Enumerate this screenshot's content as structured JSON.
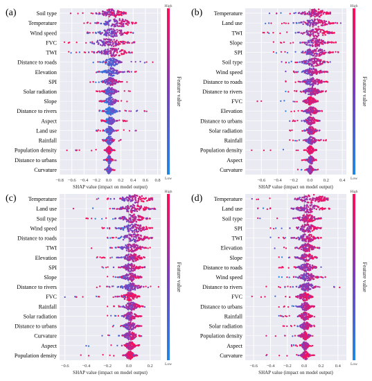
{
  "colors": {
    "low": "#1e88e5",
    "mid": "#7b3fbf",
    "high": "#ff0d57",
    "background": "#eaeaf2",
    "grid": "#ffffff"
  },
  "chart_data": [
    {
      "type": "beeswarm",
      "panel_label": "(a)",
      "xlabel": "SHAP value (impact on model output)",
      "colorbar_label": "Feature value",
      "colorbar_high": "High",
      "colorbar_low": "Low",
      "xlim": [
        -0.8,
        0.85
      ],
      "xticks": [
        -0.8,
        -0.6,
        -0.4,
        -0.2,
        0.0,
        0.2,
        0.4,
        0.6,
        0.8
      ],
      "xtick_labels": [
        "−0.8",
        "−0.6",
        "−0.4",
        "−0.2",
        "0.0",
        "0.2",
        "0.4",
        "0.6",
        "0.8"
      ],
      "features": [
        {
          "name": "Soil type",
          "min": -0.62,
          "max": 0.28,
          "core": [
            -0.1,
            0.22
          ]
        },
        {
          "name": "Temperature",
          "min": -0.4,
          "max": 0.45,
          "core": [
            -0.05,
            0.35
          ]
        },
        {
          "name": "Wind speed",
          "min": -0.35,
          "max": 0.4,
          "core": [
            -0.1,
            0.25
          ]
        },
        {
          "name": "FVC",
          "min": -0.72,
          "max": 0.42,
          "core": [
            -0.2,
            0.2
          ]
        },
        {
          "name": "TWI",
          "min": -0.65,
          "max": 0.38,
          "core": [
            -0.1,
            0.25
          ]
        },
        {
          "name": "Distance to roads",
          "min": -0.25,
          "max": 0.72,
          "core": [
            -0.05,
            0.15
          ]
        },
        {
          "name": "Elevation",
          "min": -0.2,
          "max": 0.45,
          "core": [
            -0.05,
            0.15
          ]
        },
        {
          "name": "SPI",
          "min": -0.3,
          "max": 0.3,
          "core": [
            -0.05,
            0.12
          ]
        },
        {
          "name": "Solar radiation",
          "min": -0.2,
          "max": 0.35,
          "core": [
            -0.05,
            0.1
          ]
        },
        {
          "name": "Slope",
          "min": -0.15,
          "max": 0.3,
          "core": [
            -0.04,
            0.1
          ]
        },
        {
          "name": "Distance to rivers",
          "min": -0.15,
          "max": 0.62,
          "core": [
            -0.04,
            0.1
          ]
        },
        {
          "name": "Aspect",
          "min": -0.12,
          "max": 0.3,
          "core": [
            -0.03,
            0.08
          ]
        },
        {
          "name": "Land use",
          "min": -0.2,
          "max": 0.45,
          "core": [
            -0.03,
            0.06
          ]
        },
        {
          "name": "Rainfall",
          "min": -0.1,
          "max": 0.2,
          "core": [
            -0.03,
            0.06
          ]
        },
        {
          "name": "Population density",
          "min": -0.68,
          "max": 0.1,
          "core": [
            -0.03,
            0.04
          ]
        },
        {
          "name": "Distance to urbans",
          "min": -0.08,
          "max": 0.12,
          "core": [
            -0.02,
            0.04
          ]
        },
        {
          "name": "Curvature",
          "min": -0.06,
          "max": 0.1,
          "core": [
            -0.02,
            0.03
          ]
        }
      ]
    },
    {
      "type": "beeswarm",
      "panel_label": "(b)",
      "xlabel": "SHAP value (impact on model output)",
      "colorbar_label": "Feature value",
      "colorbar_high": "High",
      "colorbar_low": "Low",
      "xlim": [
        -0.8,
        0.45
      ],
      "xticks": [
        -0.6,
        -0.4,
        -0.2,
        0.0,
        0.2,
        0.4
      ],
      "xtick_labels": [
        "−0.6",
        "−0.4",
        "−0.2",
        "0.0",
        "0.2",
        "0.4"
      ],
      "features": [
        {
          "name": "Temperature",
          "min": -0.5,
          "max": 0.25,
          "core": [
            -0.05,
            0.2
          ]
        },
        {
          "name": "Land use",
          "min": -0.55,
          "max": 0.38,
          "core": [
            -0.05,
            0.2
          ]
        },
        {
          "name": "TWI",
          "min": -0.58,
          "max": 0.3,
          "core": [
            -0.05,
            0.2
          ]
        },
        {
          "name": "Slope",
          "min": -0.45,
          "max": 0.32,
          "core": [
            -0.05,
            0.18
          ]
        },
        {
          "name": "SPI",
          "min": -0.45,
          "max": 0.35,
          "core": [
            -0.05,
            0.18
          ]
        },
        {
          "name": "Soil type",
          "min": -0.35,
          "max": 0.25,
          "core": [
            -0.05,
            0.15
          ]
        },
        {
          "name": "Wind speed",
          "min": -0.3,
          "max": 0.22,
          "core": [
            -0.05,
            0.12
          ]
        },
        {
          "name": "Distance to roads",
          "min": -0.3,
          "max": 0.22,
          "core": [
            -0.05,
            0.12
          ]
        },
        {
          "name": "Distance to rivers",
          "min": -0.3,
          "max": 0.2,
          "core": [
            -0.05,
            0.1
          ]
        },
        {
          "name": "FVC",
          "min": -0.65,
          "max": 0.1,
          "core": [
            -0.05,
            0.06
          ]
        },
        {
          "name": "Elevation",
          "min": -0.3,
          "max": 0.15,
          "core": [
            -0.04,
            0.08
          ]
        },
        {
          "name": "Distance to urbans",
          "min": -0.25,
          "max": 0.12,
          "core": [
            -0.04,
            0.06
          ]
        },
        {
          "name": "Solar radiation",
          "min": -0.25,
          "max": 0.12,
          "core": [
            -0.03,
            0.06
          ]
        },
        {
          "name": "Rainfall",
          "min": -0.25,
          "max": 0.2,
          "core": [
            -0.03,
            0.06
          ]
        },
        {
          "name": "Population density",
          "min": -0.72,
          "max": 0.08,
          "core": [
            -0.03,
            0.04
          ]
        },
        {
          "name": "Aspect",
          "min": -0.1,
          "max": 0.08,
          "core": [
            -0.02,
            0.04
          ]
        },
        {
          "name": "Curvature",
          "min": -0.15,
          "max": 0.1,
          "core": [
            -0.02,
            0.03
          ]
        }
      ]
    },
    {
      "type": "beeswarm",
      "panel_label": "(c)",
      "xlabel": "SHAP value (impact on model output)",
      "colorbar_label": "Feature value",
      "colorbar_high": "High",
      "colorbar_low": "Low",
      "xlim": [
        -0.65,
        0.3
      ],
      "xticks": [
        -0.6,
        -0.4,
        -0.2,
        0.0,
        0.2
      ],
      "xtick_labels": [
        "−0.6",
        "−0.4",
        "−0.2",
        "0.0",
        "0.2"
      ],
      "features": [
        {
          "name": "Temperature",
          "min": -0.3,
          "max": 0.22,
          "core": [
            -0.05,
            0.18
          ]
        },
        {
          "name": "Land use",
          "min": -0.52,
          "max": 0.25,
          "core": [
            -0.05,
            0.15
          ]
        },
        {
          "name": "Soil type",
          "min": -0.4,
          "max": 0.2,
          "core": [
            -0.05,
            0.12
          ]
        },
        {
          "name": "Wind speed",
          "min": -0.25,
          "max": 0.22,
          "core": [
            -0.05,
            0.15
          ]
        },
        {
          "name": "Distance to roads",
          "min": -0.2,
          "max": 0.22,
          "core": [
            -0.05,
            0.15
          ]
        },
        {
          "name": "TWI",
          "min": -0.35,
          "max": 0.2,
          "core": [
            -0.05,
            0.1
          ]
        },
        {
          "name": "Elevation",
          "min": -0.3,
          "max": 0.15,
          "core": [
            -0.04,
            0.1
          ]
        },
        {
          "name": "SPI",
          "min": -0.25,
          "max": 0.15,
          "core": [
            -0.04,
            0.08
          ]
        },
        {
          "name": "Slope",
          "min": -0.2,
          "max": 0.12,
          "core": [
            -0.04,
            0.08
          ]
        },
        {
          "name": "Distance to rivers",
          "min": -0.3,
          "max": 0.28,
          "core": [
            -0.04,
            0.08
          ]
        },
        {
          "name": "FVC",
          "min": -0.6,
          "max": 0.1,
          "core": [
            -0.05,
            0.06
          ]
        },
        {
          "name": "Rainfall",
          "min": -0.2,
          "max": 0.15,
          "core": [
            -0.03,
            0.08
          ]
        },
        {
          "name": "Solar radiation",
          "min": -0.2,
          "max": 0.12,
          "core": [
            -0.03,
            0.06
          ]
        },
        {
          "name": "Distance to urbans",
          "min": -0.15,
          "max": 0.12,
          "core": [
            -0.03,
            0.06
          ]
        },
        {
          "name": "Curvature",
          "min": -0.25,
          "max": 0.12,
          "core": [
            -0.03,
            0.06
          ]
        },
        {
          "name": "Aspect",
          "min": -0.4,
          "max": 0.1,
          "core": [
            -0.02,
            0.05
          ]
        },
        {
          "name": "Population density",
          "min": -0.45,
          "max": 0.08,
          "core": [
            -0.02,
            0.04
          ]
        }
      ]
    },
    {
      "type": "beeswarm",
      "panel_label": "(d)",
      "xlabel": "SHAP value (impact on model output)",
      "colorbar_label": "Feature value",
      "colorbar_high": "High",
      "colorbar_low": "Low",
      "xlim": [
        -0.7,
        0.5
      ],
      "xticks": [
        -0.6,
        -0.4,
        -0.2,
        0.0,
        0.2,
        0.4
      ],
      "xtick_labels": [
        "−0.6",
        "−0.4",
        "−0.2",
        "0.0",
        "0.2",
        "0.4"
      ],
      "features": [
        {
          "name": "Temperature",
          "min": -0.62,
          "max": 0.28,
          "core": [
            -0.05,
            0.25
          ]
        },
        {
          "name": "Land use",
          "min": -0.55,
          "max": 0.3,
          "core": [
            -0.05,
            0.18
          ]
        },
        {
          "name": "Soil type",
          "min": -0.55,
          "max": 0.2,
          "core": [
            -0.05,
            0.12
          ]
        },
        {
          "name": "SPI",
          "min": -0.4,
          "max": 0.2,
          "core": [
            -0.05,
            0.12
          ]
        },
        {
          "name": "TWI",
          "min": -0.4,
          "max": 0.2,
          "core": [
            -0.05,
            0.12
          ]
        },
        {
          "name": "Elevation",
          "min": -0.35,
          "max": 0.18,
          "core": [
            -0.04,
            0.1
          ]
        },
        {
          "name": "Slope",
          "min": -0.3,
          "max": 0.15,
          "core": [
            -0.04,
            0.1
          ]
        },
        {
          "name": "Distance to roads",
          "min": -0.3,
          "max": 0.2,
          "core": [
            -0.04,
            0.1
          ]
        },
        {
          "name": "Wind speed",
          "min": -0.3,
          "max": 0.25,
          "core": [
            -0.04,
            0.12
          ]
        },
        {
          "name": "Distance to rivers",
          "min": -0.45,
          "max": 0.42,
          "core": [
            -0.04,
            0.1
          ]
        },
        {
          "name": "FVC",
          "min": -0.62,
          "max": 0.1,
          "core": [
            -0.05,
            0.06
          ]
        },
        {
          "name": "Distance to urbans",
          "min": -0.3,
          "max": 0.12,
          "core": [
            -0.04,
            0.06
          ]
        },
        {
          "name": "Rainfall",
          "min": -0.3,
          "max": 0.12,
          "core": [
            -0.04,
            0.06
          ]
        },
        {
          "name": "Solar radiation",
          "min": -0.25,
          "max": 0.12,
          "core": [
            -0.03,
            0.06
          ]
        },
        {
          "name": "Population density",
          "min": -0.45,
          "max": 0.1,
          "core": [
            -0.03,
            0.05
          ]
        },
        {
          "name": "Aspect",
          "min": -0.15,
          "max": 0.1,
          "core": [
            -0.02,
            0.04
          ]
        },
        {
          "name": "Curvature",
          "min": -0.45,
          "max": 0.12,
          "core": [
            -0.02,
            0.05
          ]
        }
      ]
    }
  ]
}
